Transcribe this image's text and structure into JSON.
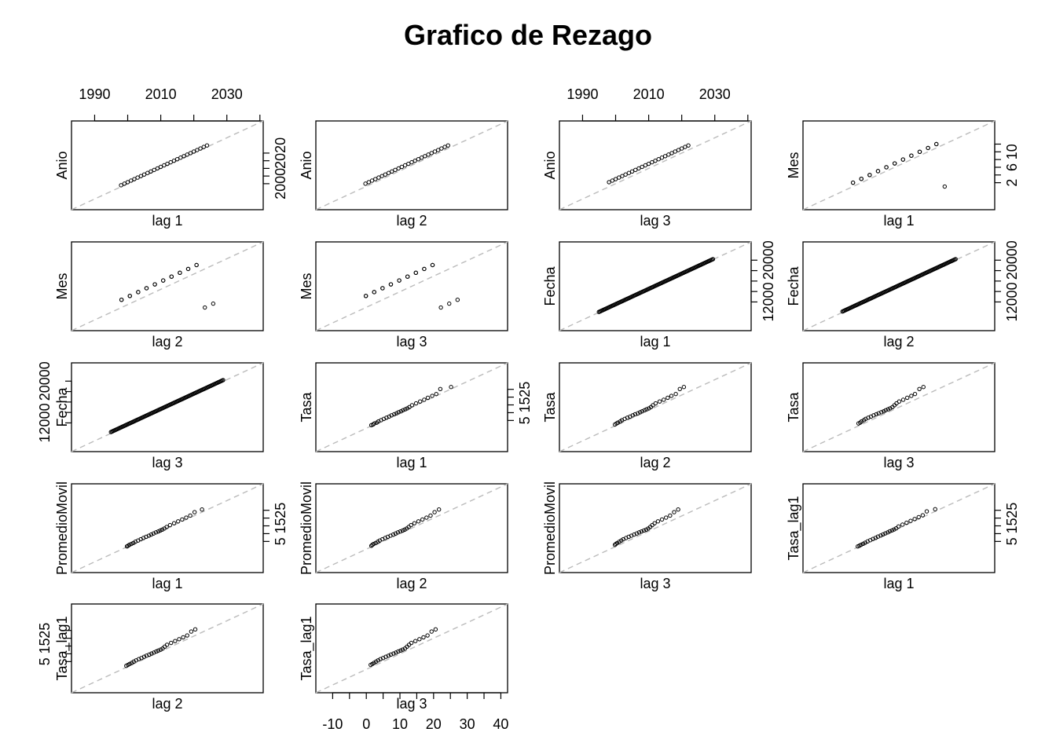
{
  "title": "Grafico de Rezago",
  "chart_data": {
    "type": "scatter",
    "description_free": true,
    "panels": [
      {
        "id": "anio-lag1",
        "ylabel": "Anio",
        "xlabel": "lag 1",
        "var": "anio",
        "lag": 1,
        "domain": [
          1983,
          2041
        ],
        "left_ticks": [],
        "right_ticks": [
          "2000",
          "2020"
        ],
        "top_ticks": [
          "1990",
          "2010",
          "2030"
        ],
        "bottom_ticks": []
      },
      {
        "id": "anio-lag2",
        "ylabel": "Anio",
        "xlabel": "lag 2",
        "var": "anio",
        "lag": 2,
        "domain": [
          1983,
          2041
        ],
        "left_ticks": [],
        "right_ticks": [],
        "top_ticks": [],
        "bottom_ticks": []
      },
      {
        "id": "anio-lag3",
        "ylabel": "Anio",
        "xlabel": "lag 3",
        "var": "anio",
        "lag": 3,
        "domain": [
          1983,
          2041
        ],
        "left_ticks": [],
        "right_ticks": [],
        "top_ticks": [
          "1990",
          "2010",
          "2030"
        ],
        "bottom_ticks": []
      },
      {
        "id": "mes-lag1",
        "ylabel": "Mes",
        "xlabel": "lag 1",
        "var": "mes",
        "lag": 1,
        "domain": [
          -5,
          18
        ],
        "left_ticks": [],
        "right_ticks": [
          "2",
          "6",
          "10"
        ],
        "top_ticks": [],
        "bottom_ticks": []
      },
      {
        "id": "mes-lag2",
        "ylabel": "Mes",
        "xlabel": "lag 2",
        "var": "mes",
        "lag": 2,
        "domain": [
          -5,
          18
        ],
        "left_ticks": [],
        "right_ticks": [],
        "top_ticks": [],
        "bottom_ticks": []
      },
      {
        "id": "mes-lag3",
        "ylabel": "Mes",
        "xlabel": "lag 3",
        "var": "mes",
        "lag": 3,
        "domain": [
          -5,
          18
        ],
        "left_ticks": [],
        "right_ticks": [],
        "top_ticks": [],
        "bottom_ticks": []
      },
      {
        "id": "fecha-lag1",
        "ylabel": "Fecha",
        "xlabel": "lag 1",
        "var": "fecha",
        "lag": 1,
        "domain": [
          6500,
          23500
        ],
        "left_ticks": [],
        "right_ticks": [
          "12000",
          "20000"
        ],
        "top_ticks": [],
        "bottom_ticks": []
      },
      {
        "id": "fecha-lag2",
        "ylabel": "Fecha",
        "xlabel": "lag 2",
        "var": "fecha",
        "lag": 2,
        "domain": [
          6500,
          23500
        ],
        "left_ticks": [],
        "right_ticks": [
          "12000",
          "20000"
        ],
        "top_ticks": [],
        "bottom_ticks": []
      },
      {
        "id": "fecha-lag3",
        "ylabel": "Fecha",
        "xlabel": "lag 3",
        "var": "fecha",
        "lag": 3,
        "domain": [
          6500,
          23500
        ],
        "left_ticks": [
          "12000",
          "20000"
        ],
        "right_ticks": [],
        "top_ticks": [],
        "bottom_ticks": []
      },
      {
        "id": "tasa-lag1",
        "ylabel": "Tasa",
        "xlabel": "lag 1",
        "var": "tasa",
        "lag": 1,
        "domain": [
          -15,
          42
        ],
        "left_ticks": [],
        "right_ticks": [
          "5",
          "15",
          "25"
        ],
        "top_ticks": [],
        "bottom_ticks": []
      },
      {
        "id": "tasa-lag2",
        "ylabel": "Tasa",
        "xlabel": "lag 2",
        "var": "tasa",
        "lag": 2,
        "domain": [
          -15,
          42
        ],
        "left_ticks": [],
        "right_ticks": [],
        "top_ticks": [],
        "bottom_ticks": []
      },
      {
        "id": "tasa-lag3",
        "ylabel": "Tasa",
        "xlabel": "lag 3",
        "var": "tasa",
        "lag": 3,
        "domain": [
          -15,
          42
        ],
        "left_ticks": [],
        "right_ticks": [],
        "top_ticks": [],
        "bottom_ticks": []
      },
      {
        "id": "pm-lag1",
        "ylabel": "PromedioMovil",
        "xlabel": "lag 1",
        "var": "pm",
        "lag": 1,
        "domain": [
          -15,
          42
        ],
        "left_ticks": [],
        "right_ticks": [
          "5",
          "15",
          "25"
        ],
        "top_ticks": [],
        "bottom_ticks": []
      },
      {
        "id": "pm-lag2",
        "ylabel": "PromedioMovil",
        "xlabel": "lag 2",
        "var": "pm",
        "lag": 2,
        "domain": [
          -15,
          42
        ],
        "left_ticks": [],
        "right_ticks": [],
        "top_ticks": [],
        "bottom_ticks": []
      },
      {
        "id": "pm-lag3",
        "ylabel": "PromedioMovil",
        "xlabel": "lag 3",
        "var": "pm",
        "lag": 3,
        "domain": [
          -15,
          42
        ],
        "left_ticks": [],
        "right_ticks": [],
        "top_ticks": [],
        "bottom_ticks": []
      },
      {
        "id": "tasalag1-lag1",
        "ylabel": "Tasa_lag1",
        "xlabel": "lag 1",
        "var": "tasalag",
        "lag": 1,
        "domain": [
          -15,
          42
        ],
        "left_ticks": [],
        "right_ticks": [
          "5",
          "15",
          "25"
        ],
        "top_ticks": [],
        "bottom_ticks": []
      },
      {
        "id": "tasalag1-lag2",
        "ylabel": "Tasa_lag1",
        "xlabel": "lag 2",
        "var": "tasalag",
        "lag": 2,
        "domain": [
          -15,
          42
        ],
        "left_ticks": [
          "5",
          "15",
          "25"
        ],
        "right_ticks": [],
        "top_ticks": [],
        "bottom_ticks": []
      },
      {
        "id": "tasalag1-lag3",
        "ylabel": "Tasa_lag1",
        "xlabel": "lag 3",
        "var": "tasalag",
        "lag": 3,
        "domain": [
          -15,
          42
        ],
        "left_ticks": [],
        "right_ticks": [],
        "top_ticks": [],
        "bottom_ticks": [
          "-10",
          "0",
          "10",
          "20",
          "30",
          "40"
        ]
      }
    ],
    "series": {
      "anio": [
        1998,
        1999,
        2000,
        2001,
        2002,
        2003,
        2004,
        2005,
        2006,
        2007,
        2008,
        2009,
        2010,
        2011,
        2012,
        2013,
        2014,
        2015,
        2016,
        2017,
        2018,
        2019,
        2020,
        2021,
        2022,
        2023,
        2024,
        2025
      ],
      "mes": [
        1,
        2,
        3,
        4,
        5,
        6,
        7,
        8,
        9,
        10,
        11,
        12,
        1,
        2,
        3,
        4,
        5,
        6,
        7,
        8,
        9,
        10,
        11,
        12
      ],
      "tasa": [
        1.5,
        2.0,
        2.4,
        3.1,
        3.6,
        4.4,
        5.2,
        6.0,
        6.8,
        7.5,
        8.3,
        9.0,
        9.6,
        10.3,
        10.9,
        11.6,
        12.2,
        12.8,
        13.6,
        14.8,
        16.0,
        17.2,
        18.3,
        19.6,
        20.8,
        22.0,
        25.2,
        26.5
      ],
      "pm": [
        1.5,
        1.8,
        2.2,
        2.8,
        3.4,
        4.0,
        4.8,
        5.6,
        6.4,
        7.2,
        8.0,
        8.7,
        9.4,
        10.1,
        10.8,
        11.4,
        12.0,
        12.6,
        13.3,
        14.3,
        15.5,
        16.7,
        17.9,
        19.1,
        20.3,
        21.6,
        23.8,
        25.5
      ],
      "tasalag": [
        1.3,
        1.8,
        2.3,
        2.9,
        3.5,
        4.2,
        5.0,
        5.8,
        6.6,
        7.3,
        8.1,
        8.8,
        9.5,
        10.2,
        10.8,
        11.5,
        12.1,
        12.7,
        13.4,
        14.6,
        15.8,
        17.0,
        18.2,
        19.4,
        20.6,
        21.8,
        24.3,
        25.7
      ]
    }
  }
}
